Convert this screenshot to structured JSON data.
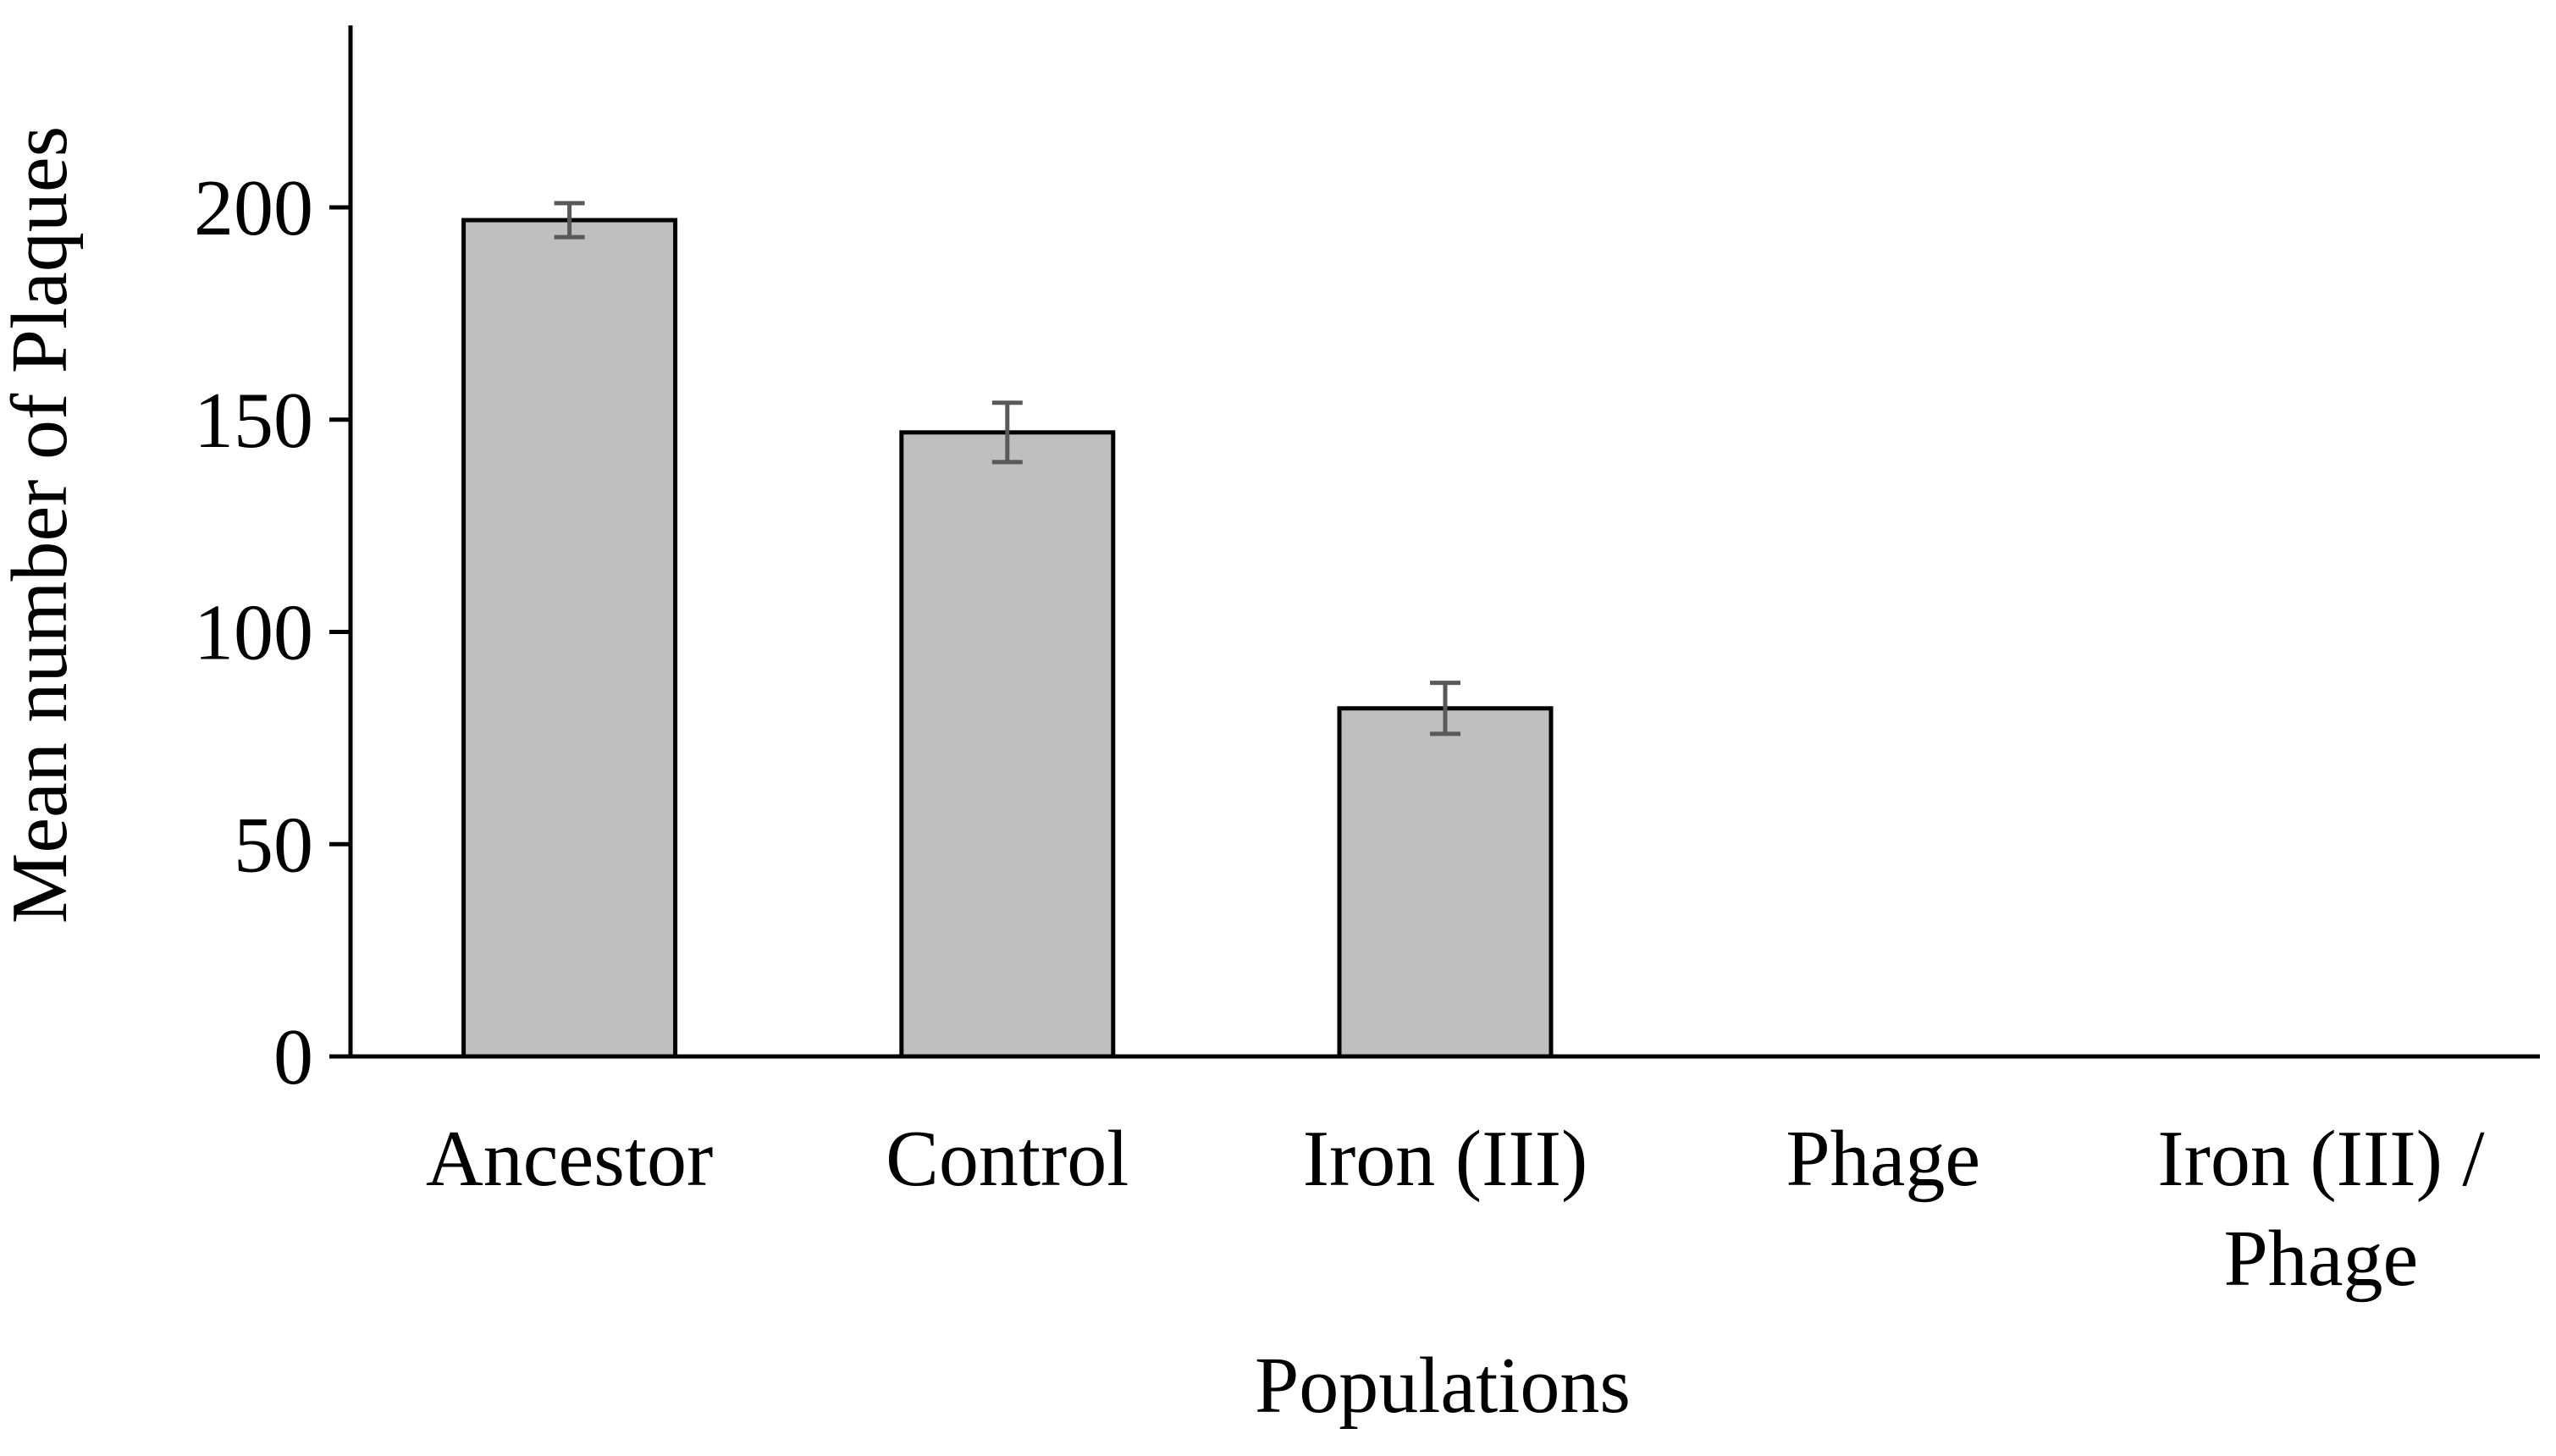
{
  "chart_data": {
    "type": "bar",
    "title": "",
    "xlabel": "Populations",
    "ylabel": "Mean number of Plaques",
    "categories": [
      [
        "Ancestor"
      ],
      [
        "Control"
      ],
      [
        "Iron (III)"
      ],
      [
        "Phage"
      ],
      [
        "Iron (III) /",
        "Phage"
      ]
    ],
    "values": [
      197,
      147,
      82,
      0,
      0
    ],
    "errors": [
      4,
      7,
      6,
      0,
      0
    ],
    "ylim": [
      0,
      240
    ],
    "yticks": [
      0,
      50,
      100,
      150,
      200
    ],
    "grid": false,
    "legend": "none",
    "colors": {
      "bar_fill": "#bfbfbf",
      "bar_stroke": "#000000",
      "axis": "#000000",
      "error_bar": "#595959"
    }
  }
}
